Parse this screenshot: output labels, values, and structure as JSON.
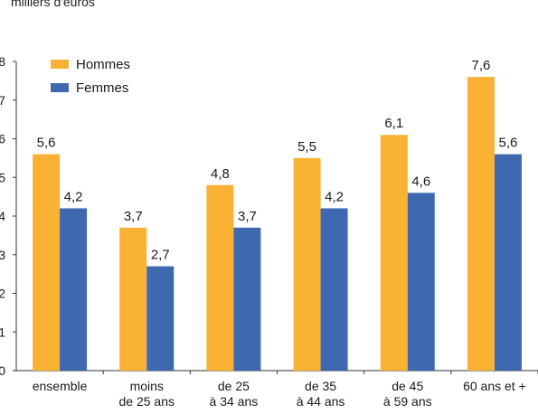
{
  "chart_data": {
    "type": "bar",
    "title": "",
    "ylabel": "milliers d'euros",
    "xlabel": "",
    "ylim": [
      0,
      8
    ],
    "yticks": [
      "0",
      "1",
      "2",
      "3",
      "4",
      "5",
      "6",
      "7",
      "8"
    ],
    "categories": [
      [
        "ensemble"
      ],
      [
        "moins",
        "de 25 ans"
      ],
      [
        "de 25",
        "à 34 ans"
      ],
      [
        "de 35",
        "à 44 ans"
      ],
      [
        "de 45",
        "à 59 ans"
      ],
      [
        "60 ans et +"
      ]
    ],
    "series": [
      {
        "name": "Hommes",
        "color": "#f9b233",
        "values": [
          5.6,
          3.7,
          4.8,
          5.5,
          6.1,
          7.6
        ],
        "labels": [
          "5,6",
          "3,7",
          "4,8",
          "5,5",
          "6,1",
          "7,6"
        ]
      },
      {
        "name": "Femmes",
        "color": "#3e68b0",
        "values": [
          4.2,
          2.7,
          3.7,
          4.2,
          4.6,
          5.6
        ],
        "labels": [
          "4,2",
          "2,7",
          "3,7",
          "4,2",
          "4,6",
          "5,6"
        ]
      }
    ],
    "legend_position": "top-left",
    "grid": false
  }
}
